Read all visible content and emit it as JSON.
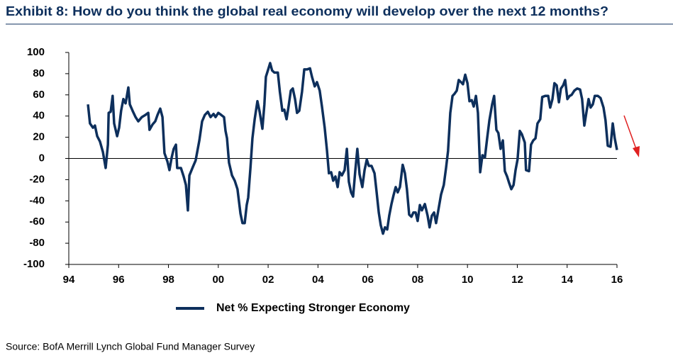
{
  "chart_data": {
    "type": "line",
    "title": "Exhibit 8: How do you think the global real economy will develop over the next 12 months?",
    "source": "Source: BofA Merrill Lynch Global Fund Manager Survey",
    "xlim": [
      1994,
      2016
    ],
    "ylim": [
      -100,
      100
    ],
    "xticks": [
      {
        "value": 1994,
        "label": "94"
      },
      {
        "value": 1996,
        "label": "96"
      },
      {
        "value": 1998,
        "label": "98"
      },
      {
        "value": 2000,
        "label": "00"
      },
      {
        "value": 2002,
        "label": "02"
      },
      {
        "value": 2004,
        "label": "04"
      },
      {
        "value": 2006,
        "label": "06"
      },
      {
        "value": 2008,
        "label": "08"
      },
      {
        "value": 2010,
        "label": "10"
      },
      {
        "value": 2012,
        "label": "12"
      },
      {
        "value": 2014,
        "label": "14"
      },
      {
        "value": 2016,
        "label": "16"
      }
    ],
    "yticks": [
      100,
      80,
      60,
      40,
      20,
      0,
      -20,
      -40,
      -60,
      -80,
      -100
    ],
    "reference_line": 0,
    "x": [
      1994.77,
      1994.85,
      1994.97,
      1995.05,
      1995.14,
      1995.25,
      1995.37,
      1995.48,
      1995.57,
      1995.6,
      1995.68,
      1995.76,
      1995.82,
      1995.94,
      1996.02,
      1996.1,
      1996.19,
      1996.28,
      1996.39,
      1996.45,
      1996.56,
      1996.68,
      1996.79,
      1996.93,
      1997.07,
      1997.19,
      1997.24,
      1997.36,
      1997.47,
      1997.56,
      1997.67,
      1997.76,
      1997.84,
      1997.96,
      1998.04,
      1998.13,
      1998.21,
      1998.3,
      1998.35,
      1998.5,
      1998.61,
      1998.7,
      1998.78,
      1998.84,
      1998.98,
      1999.09,
      1999.24,
      1999.35,
      1999.46,
      1999.58,
      1999.69,
      1999.81,
      1999.89,
      2000.0,
      2000.12,
      2000.23,
      2000.29,
      2000.35,
      2000.43,
      2000.55,
      2000.66,
      2000.77,
      2000.89,
      2000.97,
      2001.06,
      2001.14,
      2001.2,
      2001.29,
      2001.37,
      2001.46,
      2001.57,
      2001.66,
      2001.77,
      2001.85,
      2001.91,
      2001.99,
      2002.08,
      2002.16,
      2002.25,
      2002.39,
      2002.47,
      2002.57,
      2002.65,
      2002.74,
      2002.82,
      2002.91,
      2002.99,
      2003.08,
      2003.16,
      2003.25,
      2003.36,
      2003.45,
      2003.56,
      2003.68,
      2003.76,
      2003.87,
      2003.96,
      2004.07,
      2004.16,
      2004.27,
      2004.36,
      2004.44,
      2004.53,
      2004.61,
      2004.7,
      2004.79,
      2004.87,
      2004.96,
      2005.07,
      2005.16,
      2005.24,
      2005.33,
      2005.41,
      2005.5,
      2005.58,
      2005.67,
      2005.78,
      2005.87,
      2005.96,
      2006.04,
      2006.15,
      2006.27,
      2006.35,
      2006.44,
      2006.52,
      2006.61,
      2006.69,
      2006.78,
      2006.86,
      2006.95,
      2007.03,
      2007.12,
      2007.2,
      2007.29,
      2007.4,
      2007.49,
      2007.57,
      2007.66,
      2007.75,
      2007.83,
      2007.92,
      2008.0,
      2008.09,
      2008.17,
      2008.29,
      2008.4,
      2008.48,
      2008.57,
      2008.66,
      2008.74,
      2008.83,
      2008.94,
      2009.05,
      2009.14,
      2009.22,
      2009.31,
      2009.4,
      2009.48,
      2009.57,
      2009.65,
      2009.74,
      2009.82,
      2009.91,
      2010.0,
      2010.08,
      2010.17,
      2010.25,
      2010.34,
      2010.42,
      2010.51,
      2010.6,
      2010.7,
      2010.79,
      2010.88,
      2010.99,
      2011.07,
      2011.16,
      2011.24,
      2011.33,
      2011.42,
      2011.5,
      2011.59,
      2011.67,
      2011.76,
      2011.85,
      2011.93,
      2012.01,
      2012.1,
      2012.18,
      2012.3,
      2012.35,
      2012.47,
      2012.55,
      2012.64,
      2012.73,
      2012.81,
      2012.92,
      2013.0,
      2013.12,
      2013.24,
      2013.32,
      2013.41,
      2013.49,
      2013.58,
      2013.67,
      2013.75,
      2013.84,
      2013.92,
      2014.01,
      2014.1,
      2014.18,
      2014.29,
      2014.4,
      2014.52,
      2014.6,
      2014.69,
      2014.77,
      2014.86,
      2014.94,
      2015.03,
      2015.11,
      2015.23,
      2015.34,
      2015.46,
      2015.54,
      2015.63,
      2015.74,
      2015.83,
      2015.91,
      2016.0
    ],
    "series": [
      {
        "name": "Net % Expecting Stronger Economy",
        "color": "#0d2f5c",
        "values": [
          51,
          33,
          29,
          31,
          21,
          16,
          6,
          -9,
          13,
          43,
          44,
          59,
          33,
          21,
          29,
          45,
          56,
          52,
          67,
          51,
          45,
          39,
          35,
          39,
          41,
          43,
          27,
          32,
          35,
          41,
          47,
          39,
          5,
          -3,
          -11,
          1,
          9,
          13,
          -9,
          -9,
          -17,
          -25,
          -49,
          -16,
          -8,
          -2,
          17,
          35,
          41,
          44,
          39,
          42,
          39,
          43,
          41,
          39,
          26,
          19,
          -4,
          -16,
          -21,
          -29,
          -52,
          -61,
          -61,
          -44,
          -37,
          -9,
          19,
          37,
          54,
          44,
          28,
          51,
          77,
          83,
          90,
          83,
          81,
          81,
          63,
          45,
          46,
          37,
          49,
          64,
          66,
          56,
          43,
          45,
          63,
          84,
          84,
          85,
          77,
          68,
          72,
          64,
          49,
          29,
          8,
          -14,
          -13,
          -21,
          -17,
          -27,
          -13,
          -16,
          -11,
          9,
          -22,
          -32,
          -36,
          -11,
          9,
          -15,
          -27,
          -11,
          -1,
          -7,
          -7,
          -14,
          -31,
          -51,
          -63,
          -71,
          -65,
          -67,
          -54,
          -43,
          -35,
          -27,
          -32,
          -27,
          -6,
          -14,
          -29,
          -53,
          -55,
          -51,
          -51,
          -59,
          -44,
          -49,
          -43,
          -54,
          -65,
          -54,
          -51,
          -61,
          -49,
          -34,
          -25,
          -9,
          7,
          43,
          59,
          61,
          64,
          74,
          72,
          70,
          79,
          71,
          54,
          55,
          49,
          59,
          43,
          -13,
          3,
          1,
          19,
          36,
          51,
          59,
          27,
          24,
          9,
          17,
          -12,
          -17,
          -23,
          -29,
          -25,
          -11,
          -1,
          26,
          23,
          15,
          -11,
          -12,
          13,
          17,
          19,
          33,
          37,
          58,
          59,
          59,
          48,
          56,
          71,
          69,
          53,
          66,
          69,
          74,
          56,
          59,
          60,
          64,
          66,
          65,
          56,
          31,
          43,
          56,
          48,
          51,
          59,
          59,
          57,
          48,
          36,
          12,
          11,
          33,
          19,
          8
        ]
      }
    ]
  }
}
